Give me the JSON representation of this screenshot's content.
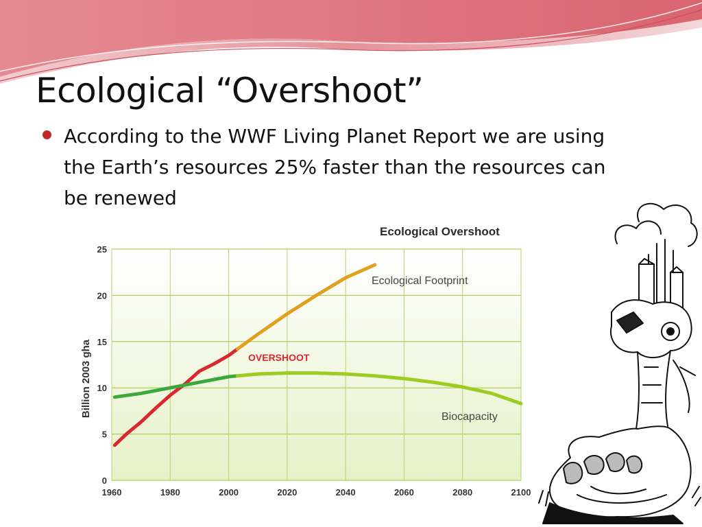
{
  "slide": {
    "title": "Ecological “Overshoot”",
    "bullets": [
      "According to the WWF Living Planet Report we are using the Earth’s resources 25% faster than the resources can be renewed"
    ]
  },
  "colors": {
    "header_swoosh": "#e06e78",
    "bullet": "#c0282b",
    "footprint_past": "#d8292e",
    "footprint_future": "#e0a020",
    "biocapacity_past": "#3aa83a",
    "biocapacity_future": "#9ccc22",
    "overshoot_label": "#d8292e"
  },
  "chart_data": {
    "type": "line",
    "title": "Ecological Overshoot",
    "xlabel": "",
    "ylabel": "Billion 2003 gha",
    "xlim": [
      1960,
      2100
    ],
    "ylim": [
      0,
      25
    ],
    "x_ticks": [
      1960,
      1980,
      2000,
      2020,
      2040,
      2060,
      2080,
      2100
    ],
    "y_ticks": [
      0,
      5,
      10,
      15,
      20,
      25
    ],
    "grid": true,
    "annotations": [
      "OVERSHOOT"
    ],
    "series": [
      {
        "name": "Ecological Footprint",
        "x": [
          1961,
          1965,
          1970,
          1975,
          1980,
          1985,
          1990,
          1995,
          2000,
          2003,
          2010,
          2020,
          2030,
          2040,
          2050
        ],
        "values": [
          3.8,
          5.0,
          6.3,
          7.8,
          9.2,
          10.4,
          11.8,
          12.6,
          13.5,
          14.2,
          15.8,
          18.0,
          20.0,
          21.9,
          23.3
        ]
      },
      {
        "name": "Biocapacity",
        "x": [
          1961,
          1970,
          1980,
          1990,
          2000,
          2003,
          2010,
          2020,
          2030,
          2040,
          2050,
          2060,
          2070,
          2080,
          2090,
          2100
        ],
        "values": [
          9.0,
          9.4,
          10.0,
          10.6,
          11.2,
          11.3,
          11.5,
          11.6,
          11.6,
          11.5,
          11.3,
          11.0,
          10.6,
          10.1,
          9.4,
          8.3
        ]
      }
    ]
  }
}
